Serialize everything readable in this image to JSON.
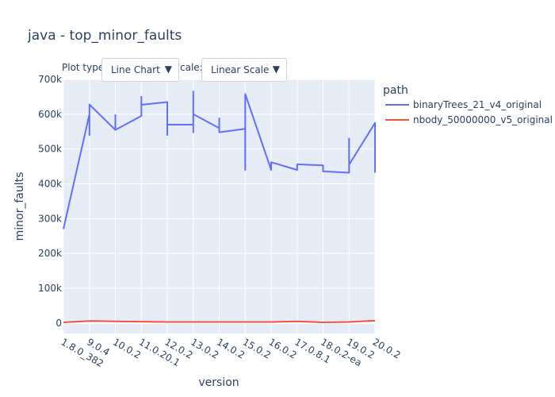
{
  "colors": {
    "plot_bg": "#e5ecf6",
    "grid": "#ffffff",
    "text": "#2a3f5f"
  },
  "controls": {
    "plot_type_label": "Plot type",
    "plot_type_value": "Line Chart",
    "scale_label": "cale:",
    "scale_value": "Linear Scale",
    "dropdown_arrow": "▼"
  },
  "chart_data": {
    "type": "line",
    "title": "java - top_minor_faults",
    "xlabel": "version",
    "ylabel": "minor_faults",
    "categories": [
      "1.8.0_382",
      "9.0.4",
      "10.0.2",
      "11.0.20.1",
      "12.0.2",
      "13.0.2",
      "14.0.2",
      "15.0.2",
      "16.0.2",
      "17.0.8.1",
      "18.0.2-ea",
      "19.0.2",
      "20.0.2"
    ],
    "ylim": [
      -30000,
      700000
    ],
    "yticks": [
      0,
      100000,
      200000,
      300000,
      400000,
      500000,
      600000,
      700000
    ],
    "ytick_labels": [
      "0",
      "100k",
      "200k",
      "300k",
      "400k",
      "500k",
      "600k",
      "700k"
    ],
    "grid": true,
    "legend_title": "path",
    "legend_position": "top-right",
    "series": [
      {
        "name": "binaryTrees_21_v4_original",
        "color": "#636efa",
        "points": [
          {
            "x": "1.8.0_382",
            "y": 270000
          },
          {
            "x": "9.0.4",
            "y": 600000
          },
          {
            "x": "9.0.4",
            "y": 540000
          },
          {
            "x": "9.0.4",
            "y": 628000
          },
          {
            "x": "10.0.2",
            "y": 555000
          },
          {
            "x": "10.0.2",
            "y": 598000
          },
          {
            "x": "10.0.2",
            "y": 555000
          },
          {
            "x": "11.0.20.1",
            "y": 595000
          },
          {
            "x": "11.0.20.1",
            "y": 650000
          },
          {
            "x": "11.0.20.1",
            "y": 627000
          },
          {
            "x": "12.0.2",
            "y": 635000
          },
          {
            "x": "12.0.2",
            "y": 540000
          },
          {
            "x": "12.0.2",
            "y": 570000
          },
          {
            "x": "13.0.2",
            "y": 570000
          },
          {
            "x": "13.0.2",
            "y": 548000
          },
          {
            "x": "13.0.2",
            "y": 665000
          },
          {
            "x": "13.0.2",
            "y": 600000
          },
          {
            "x": "14.0.2",
            "y": 560000
          },
          {
            "x": "14.0.2",
            "y": 588000
          },
          {
            "x": "14.0.2",
            "y": 548000
          },
          {
            "x": "15.0.2",
            "y": 558000
          },
          {
            "x": "15.0.2",
            "y": 440000
          },
          {
            "x": "15.0.2",
            "y": 658000
          },
          {
            "x": "16.0.2",
            "y": 440000
          },
          {
            "x": "16.0.2",
            "y": 462000
          },
          {
            "x": "17.0.8.1",
            "y": 440000
          },
          {
            "x": "17.0.8.1",
            "y": 456000
          },
          {
            "x": "18.0.2-ea",
            "y": 453000
          },
          {
            "x": "18.0.2-ea",
            "y": 436000
          },
          {
            "x": "19.0.2",
            "y": 432000
          },
          {
            "x": "19.0.2",
            "y": 530000
          },
          {
            "x": "19.0.2",
            "y": 455000
          },
          {
            "x": "20.0.2",
            "y": 575000
          },
          {
            "x": "20.0.2",
            "y": 432000
          }
        ]
      },
      {
        "name": "nbody_50000000_v5_original",
        "color": "#ef553b",
        "points": [
          {
            "x": "1.8.0_382",
            "y": 2000
          },
          {
            "x": "9.0.4",
            "y": 6000
          },
          {
            "x": "10.0.2",
            "y": 5000
          },
          {
            "x": "11.0.20.1",
            "y": 4000
          },
          {
            "x": "12.0.2",
            "y": 3000
          },
          {
            "x": "13.0.2",
            "y": 3000
          },
          {
            "x": "14.0.2",
            "y": 3000
          },
          {
            "x": "15.0.2",
            "y": 3000
          },
          {
            "x": "16.0.2",
            "y": 3000
          },
          {
            "x": "17.0.8.1",
            "y": 5000
          },
          {
            "x": "18.0.2-ea",
            "y": 2000
          },
          {
            "x": "19.0.2",
            "y": 3000
          },
          {
            "x": "20.0.2",
            "y": 7000
          }
        ]
      }
    ]
  }
}
